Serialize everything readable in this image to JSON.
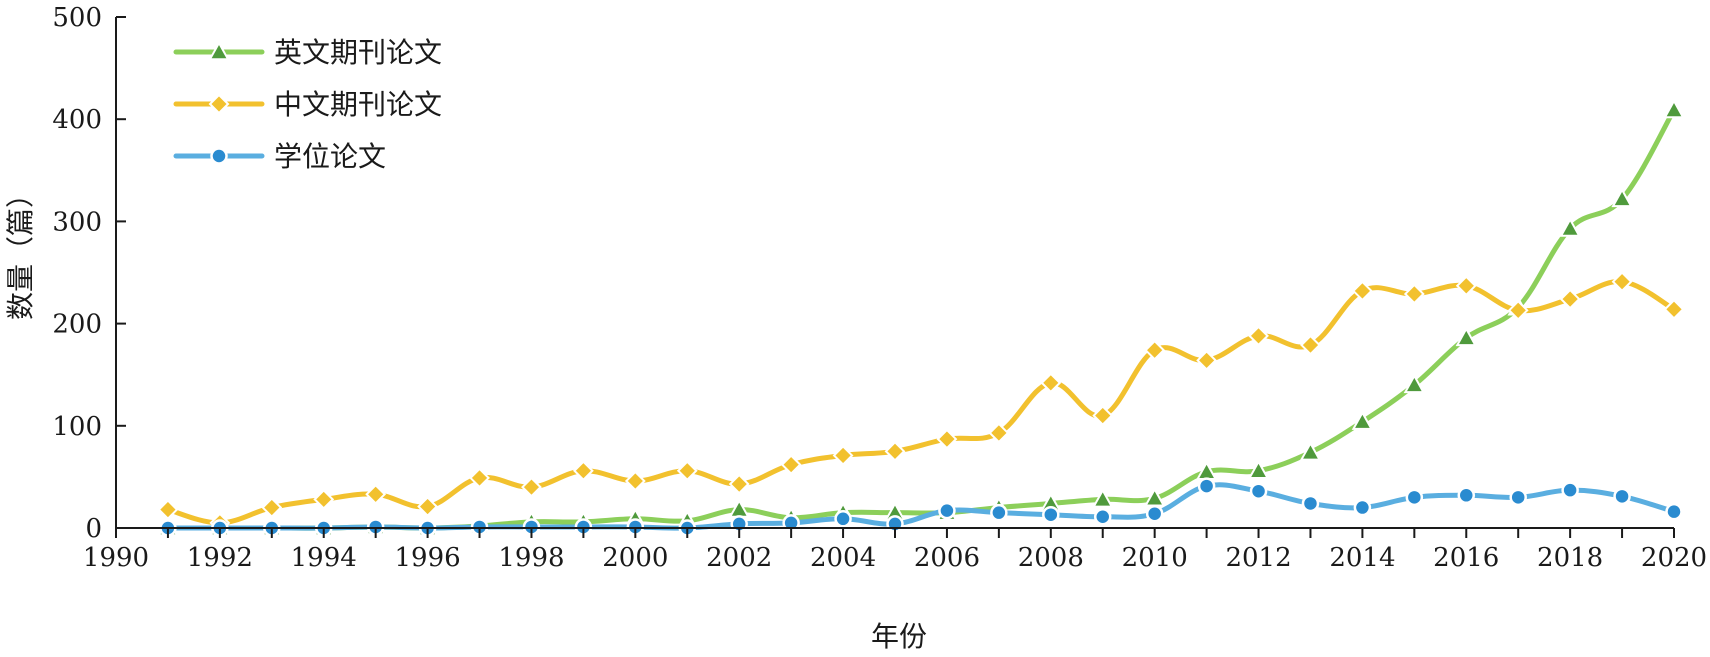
{
  "chart_data": {
    "type": "line",
    "xlabel": "年份",
    "ylabel": "数量（篇）",
    "xlim": [
      1990,
      2020
    ],
    "ylim": [
      0,
      500
    ],
    "xticks": [
      1990,
      1992,
      1994,
      1996,
      1998,
      2000,
      2002,
      2004,
      2006,
      2008,
      2010,
      2012,
      2014,
      2016,
      2018,
      2020
    ],
    "yticks": [
      0,
      100,
      200,
      300,
      400,
      500
    ],
    "legend_position": "top-left",
    "grid": false,
    "x": [
      1991,
      1992,
      1993,
      1994,
      1995,
      1996,
      1997,
      1998,
      1999,
      2000,
      2001,
      2002,
      2003,
      2004,
      2005,
      2006,
      2007,
      2008,
      2009,
      2010,
      2011,
      2012,
      2013,
      2014,
      2015,
      2016,
      2017,
      2018,
      2019,
      2020
    ],
    "series": [
      {
        "name": "英文期刊论文",
        "color": "#8ccf5a",
        "marker_color": "#4f9a3c",
        "marker": "triangle",
        "values": [
          0,
          0,
          0,
          0,
          1,
          0,
          2,
          6,
          6,
          9,
          7,
          18,
          10,
          15,
          15,
          15,
          20,
          24,
          28,
          29,
          55,
          56,
          74,
          104,
          140,
          186,
          216,
          293,
          322,
          409
        ]
      },
      {
        "name": "中文期刊论文",
        "color": "#f2c12e",
        "marker_color": "#f2c12e",
        "marker": "diamond",
        "values": [
          18,
          5,
          20,
          28,
          33,
          21,
          49,
          40,
          56,
          46,
          56,
          43,
          62,
          71,
          75,
          87,
          93,
          142,
          110,
          174,
          164,
          188,
          179,
          232,
          229,
          237,
          213,
          224,
          241,
          214
        ]
      },
      {
        "name": "学位论文",
        "color": "#5aaee0",
        "marker_color": "#2a8bd0",
        "marker": "circle",
        "values": [
          0,
          0,
          0,
          0,
          1,
          0,
          1,
          1,
          1,
          1,
          0,
          4,
          5,
          9,
          4,
          17,
          15,
          13,
          11,
          14,
          41,
          36,
          24,
          20,
          30,
          32,
          30,
          37,
          31,
          16
        ]
      }
    ]
  }
}
